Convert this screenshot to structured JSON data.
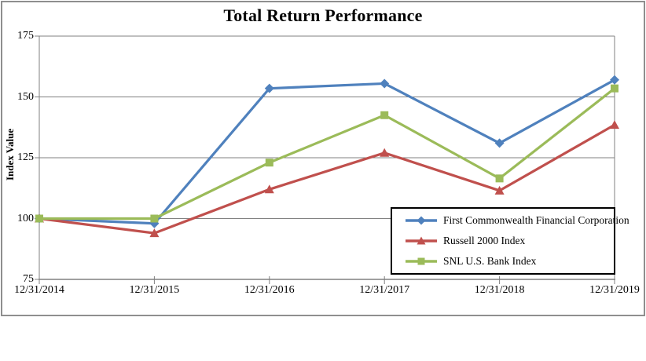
{
  "title": "Total Return Performance",
  "chart_data": {
    "type": "line",
    "title": "Total Return Performance",
    "xlabel": "",
    "ylabel": "Index Value",
    "x": [
      "12/31/2014",
      "12/31/2015",
      "12/31/2016",
      "12/31/2017",
      "12/31/2018",
      "12/31/2019"
    ],
    "yticks": [
      175,
      150,
      125,
      100,
      75
    ],
    "ylim": [
      75,
      175
    ],
    "grid": true,
    "legend_position": "inside-bottom-right",
    "series": [
      {
        "name": "First Commonwealth Financial Corporation",
        "color": "#4F81BD",
        "marker": "diamond",
        "values": [
          100,
          98,
          153.5,
          155.5,
          131,
          157
        ]
      },
      {
        "name": "Russell 2000 Index",
        "color": "#C0504D",
        "marker": "triangle",
        "values": [
          100,
          94,
          112,
          127,
          111.5,
          138.5
        ]
      },
      {
        "name": "SNL U.S. Bank Index",
        "color": "#9BBB59",
        "marker": "square",
        "values": [
          100,
          100,
          123,
          142.5,
          116.5,
          153.5
        ]
      }
    ]
  },
  "colors": {
    "background": "#FFFFFF",
    "frame": "#8F8F8F",
    "grid": "#808080",
    "axis": "#808080",
    "legend_border": "#000000",
    "text": "#000000"
  }
}
